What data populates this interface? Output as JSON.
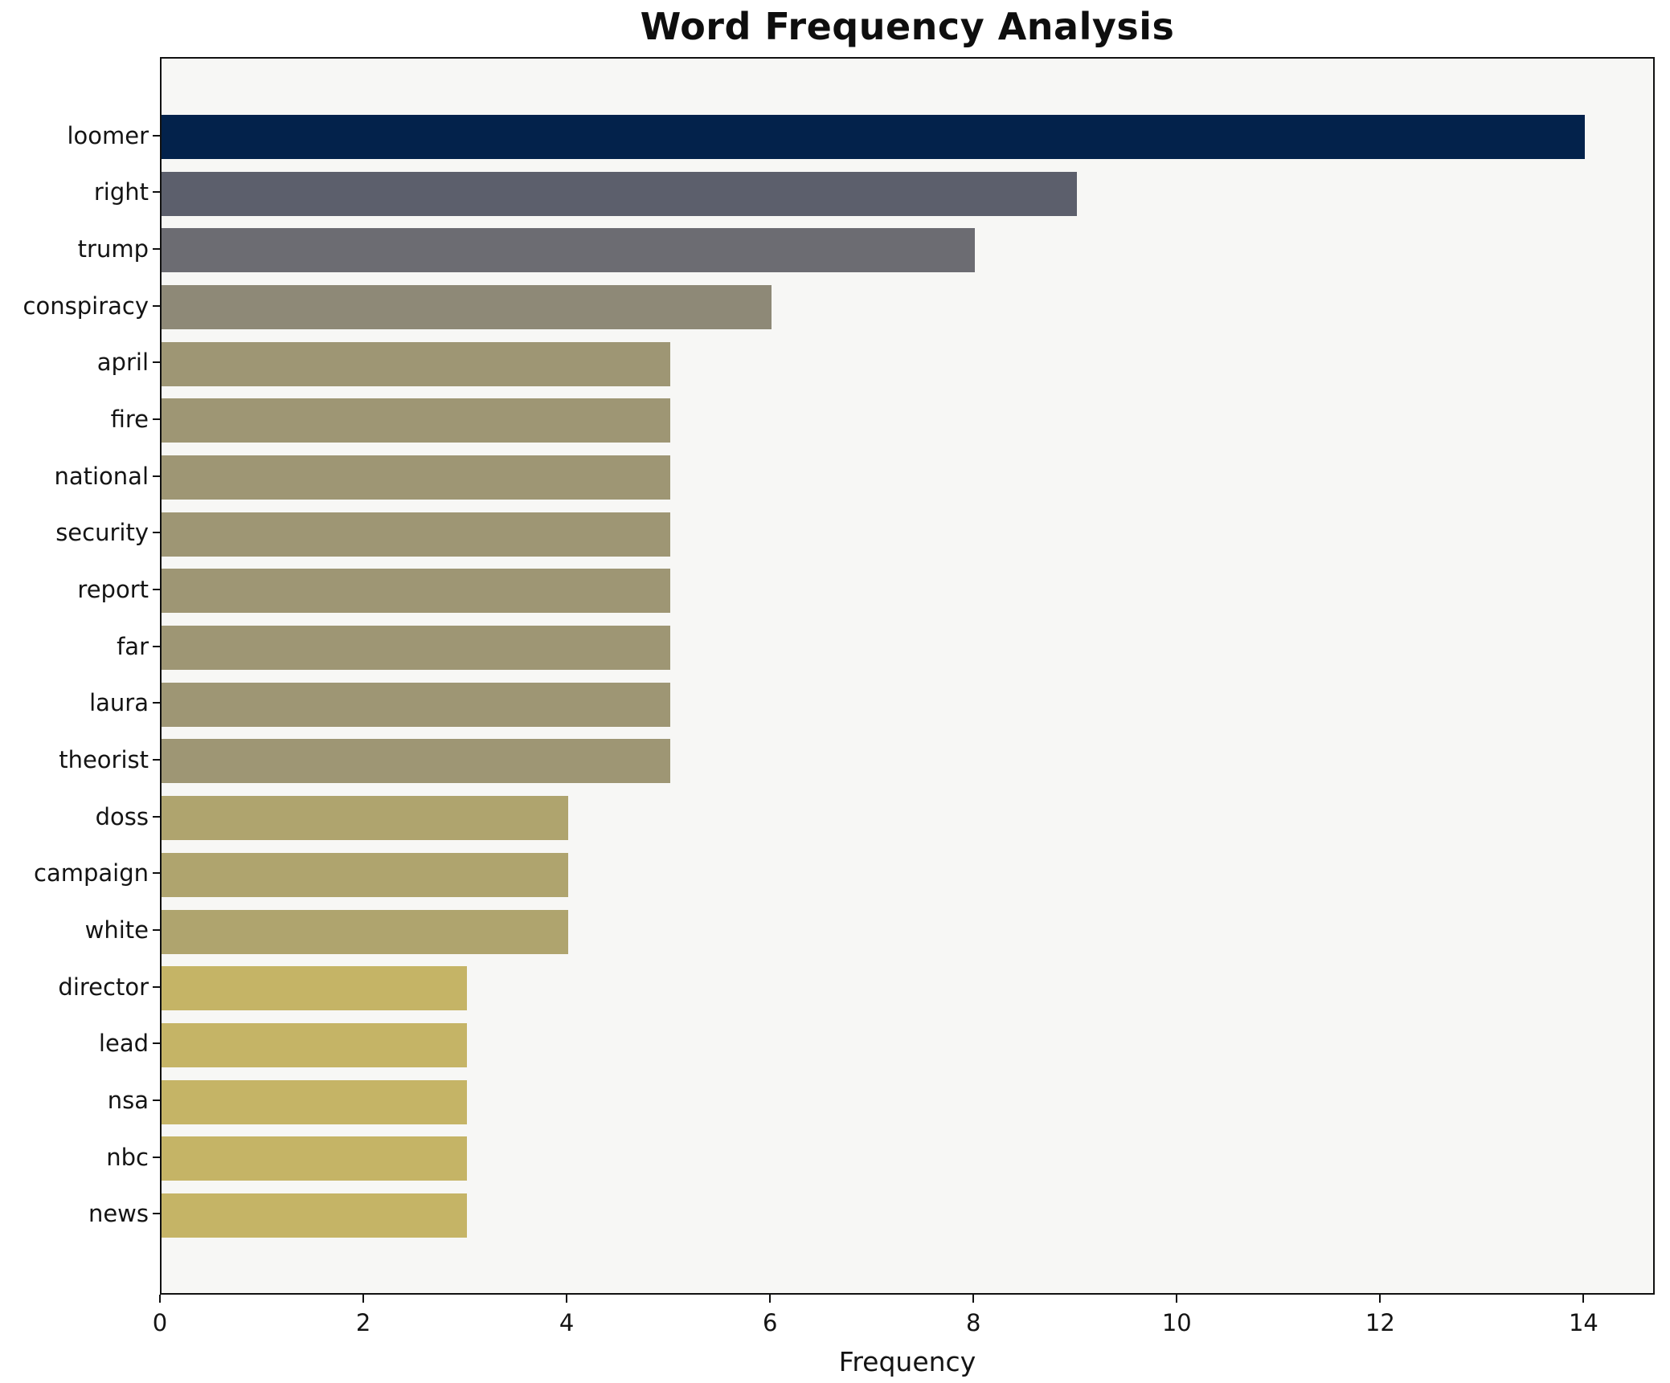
{
  "chart_data": {
    "type": "bar",
    "orientation": "horizontal",
    "title": "Word Frequency Analysis",
    "xlabel": "Frequency",
    "ylabel": "",
    "xlim": [
      0,
      14.7
    ],
    "xticks": [
      0,
      2,
      4,
      6,
      8,
      10,
      12,
      14
    ],
    "grid": false,
    "legend": "none",
    "plot_background": "#f7f7f5",
    "spine_color": "#111111",
    "categories": [
      "loomer",
      "right",
      "trump",
      "conspiracy",
      "april",
      "fire",
      "national",
      "security",
      "report",
      "far",
      "laura",
      "theorist",
      "doss",
      "campaign",
      "white",
      "director",
      "lead",
      "nsa",
      "nbc",
      "news"
    ],
    "values": [
      14,
      9,
      8,
      6,
      5,
      5,
      5,
      5,
      5,
      5,
      5,
      5,
      4,
      4,
      4,
      3,
      3,
      3,
      3,
      3
    ],
    "bar_colors": [
      "#03224b",
      "#5c5f6c",
      "#6c6c72",
      "#8e8977",
      "#9e9674",
      "#9e9674",
      "#9e9674",
      "#9e9674",
      "#9e9674",
      "#9e9674",
      "#9e9674",
      "#9e9674",
      "#afa46e",
      "#afa46e",
      "#afa46e",
      "#c5b466",
      "#c5b466",
      "#c5b466",
      "#c5b466",
      "#c5b466"
    ]
  }
}
